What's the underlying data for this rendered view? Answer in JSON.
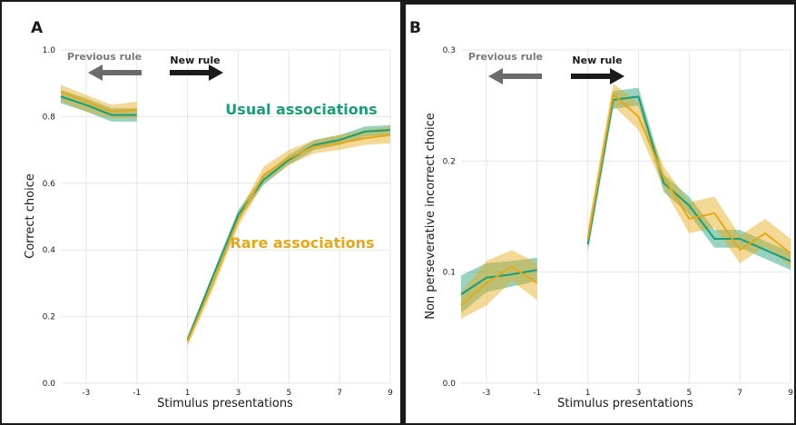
{
  "colors": {
    "usual": "#1a9e77",
    "rare": "#e6a817",
    "usual_band": "#1a9e77",
    "rare_band": "#e6a817",
    "overlap_line": "#6a9a2a",
    "previous_arrow": "#6b6b6b",
    "new_arrow": "#1a1a1a",
    "grid": "#e6e6e6",
    "frame": "#1a1a1a"
  },
  "chart_data": [
    {
      "type": "line",
      "panel_label": "A",
      "xlabel": "Stimulus presentations",
      "ylabel": "Correct choice",
      "ylim": [
        0,
        1.0
      ],
      "yticks": [
        "0.0",
        "0.2",
        "0.4",
        "0.6",
        "0.8",
        "1.0"
      ],
      "xticks": [
        "-3",
        "-1",
        "1",
        "3",
        "5",
        "7",
        "9"
      ],
      "grid": true,
      "annotations": {
        "previous_rule": "Previous rule",
        "new_rule": "New rule",
        "usual_label": "Usual associations",
        "rare_label": "Rare associations"
      },
      "series": [
        {
          "name": "Usual associations",
          "segments": [
            {
              "x": [
                -4,
                -3,
                -2,
                -1
              ],
              "y": [
                0.86,
                0.835,
                0.805,
                0.805
              ],
              "lo": [
                0.84,
                0.815,
                0.785,
                0.785
              ],
              "hi": [
                0.88,
                0.855,
                0.825,
                0.825
              ]
            },
            {
              "x": [
                1,
                2,
                3,
                4,
                5,
                6,
                7,
                8,
                9
              ],
              "y": [
                0.13,
                0.32,
                0.505,
                0.61,
                0.67,
                0.715,
                0.73,
                0.755,
                0.76
              ],
              "lo": [
                0.12,
                0.31,
                0.49,
                0.595,
                0.655,
                0.7,
                0.715,
                0.74,
                0.745
              ],
              "hi": [
                0.14,
                0.33,
                0.52,
                0.625,
                0.685,
                0.73,
                0.745,
                0.77,
                0.775
              ]
            }
          ]
        },
        {
          "name": "Rare associations",
          "segments": [
            {
              "x": [
                -4,
                -3,
                -2,
                -1
              ],
              "y": [
                0.875,
                0.845,
                0.815,
                0.82
              ],
              "lo": [
                0.845,
                0.815,
                0.795,
                0.795
              ],
              "hi": [
                0.895,
                0.865,
                0.835,
                0.845
              ]
            },
            {
              "x": [
                1,
                2,
                3,
                4,
                5,
                6,
                7,
                8,
                9
              ],
              "y": [
                0.125,
                0.3,
                0.49,
                0.625,
                0.675,
                0.71,
                0.72,
                0.735,
                0.745
              ],
              "lo": [
                0.11,
                0.28,
                0.47,
                0.6,
                0.655,
                0.69,
                0.7,
                0.715,
                0.72
              ],
              "hi": [
                0.14,
                0.32,
                0.51,
                0.65,
                0.7,
                0.73,
                0.745,
                0.76,
                0.77
              ]
            }
          ]
        }
      ]
    },
    {
      "type": "line",
      "panel_label": "B",
      "xlabel": "Stimulus presentations",
      "ylabel": "Non perseverative incorrect choice",
      "ylim": [
        0,
        0.3
      ],
      "yticks": [
        "0.0",
        "0.1",
        "0.2",
        "0.3"
      ],
      "xticks": [
        "-3",
        "-1",
        "1",
        "3",
        "5",
        "7",
        "9"
      ],
      "grid": true,
      "annotations": {
        "previous_rule": "Previous rule",
        "new_rule": "New rule"
      },
      "series": [
        {
          "name": "Usual associations",
          "segments": [
            {
              "x": [
                -4,
                -3,
                -2,
                -1
              ],
              "y": [
                0.08,
                0.095,
                0.098,
                0.102
              ],
              "lo": [
                0.063,
                0.082,
                0.087,
                0.092
              ],
              "hi": [
                0.097,
                0.108,
                0.11,
                0.113
              ]
            },
            {
              "x": [
                1,
                2,
                3,
                4,
                5,
                6,
                7,
                8,
                9
              ],
              "y": [
                0.125,
                0.255,
                0.258,
                0.18,
                0.16,
                0.13,
                0.13,
                0.12,
                0.11
              ],
              "lo": [
                0.118,
                0.247,
                0.25,
                0.172,
                0.152,
                0.122,
                0.122,
                0.112,
                0.102
              ],
              "hi": [
                0.132,
                0.263,
                0.266,
                0.188,
                0.168,
                0.138,
                0.138,
                0.128,
                0.118
              ]
            }
          ]
        },
        {
          "name": "Rare associations",
          "segments": [
            {
              "x": [
                -4,
                -3,
                -2,
                -1
              ],
              "y": [
                0.07,
                0.09,
                0.105,
                0.09
              ],
              "lo": [
                0.058,
                0.07,
                0.092,
                0.075
              ],
              "hi": [
                0.082,
                0.11,
                0.12,
                0.108
              ]
            },
            {
              "x": [
                1,
                2,
                3,
                4,
                5,
                6,
                7,
                8,
                9
              ],
              "y": [
                0.13,
                0.26,
                0.24,
                0.185,
                0.148,
                0.153,
                0.12,
                0.135,
                0.117
              ],
              "lo": [
                0.12,
                0.25,
                0.228,
                0.175,
                0.135,
                0.14,
                0.108,
                0.123,
                0.105
              ],
              "hi": [
                0.14,
                0.27,
                0.252,
                0.195,
                0.163,
                0.168,
                0.133,
                0.148,
                0.13
              ]
            }
          ]
        }
      ]
    }
  ]
}
